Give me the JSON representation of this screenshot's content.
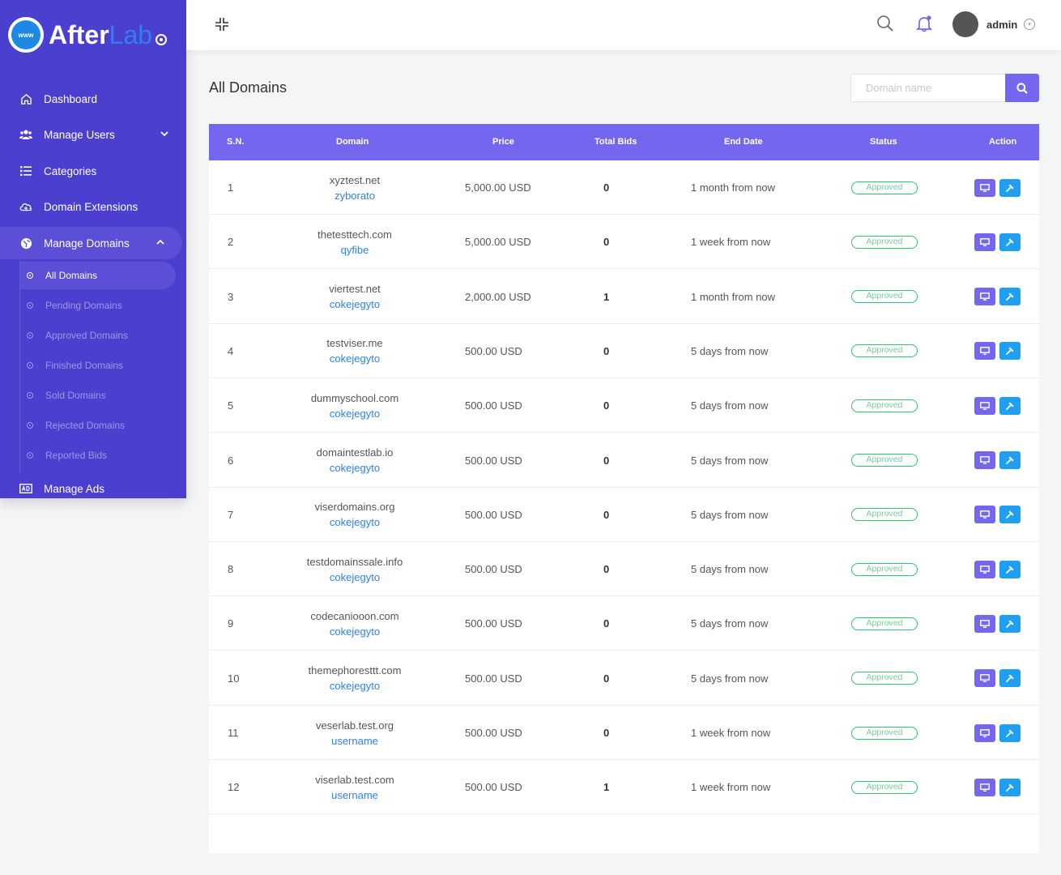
{
  "brand": {
    "name_main": "After",
    "name_accent": "Lab",
    "globe_text": "www"
  },
  "sidebar": {
    "items": [
      {
        "label": "Dashboard",
        "icon": "home-icon"
      },
      {
        "label": "Manage Users",
        "icon": "users-icon"
      },
      {
        "label": "Categories",
        "icon": "list-icon"
      },
      {
        "label": "Domain Extensions",
        "icon": "cloud-icon"
      },
      {
        "label": "Manage Domains",
        "icon": "globe-icon"
      },
      {
        "label": "Manage Ads",
        "icon": "ad-icon"
      }
    ],
    "subitems": [
      {
        "label": "All Domains"
      },
      {
        "label": "Pending Domains"
      },
      {
        "label": "Approved Domains"
      },
      {
        "label": "Finished Domains"
      },
      {
        "label": "Sold Domains"
      },
      {
        "label": "Rejected Domains"
      },
      {
        "label": "Reported Bids"
      }
    ]
  },
  "topbar": {
    "user_name": "admin"
  },
  "page": {
    "title": "All Domains",
    "search_placeholder": "Domain name"
  },
  "table": {
    "headers": {
      "sn": "S.N.",
      "domain": "Domain",
      "price": "Price",
      "bids": "Total Bids",
      "end": "End Date",
      "status": "Status",
      "action": "Action"
    },
    "rows": [
      {
        "sn": "1",
        "domain": "xyztest.net",
        "user": "zyborato",
        "price": "5,000.00 USD",
        "bids": "0",
        "end": "1 month from now",
        "status": "Approved"
      },
      {
        "sn": "2",
        "domain": "thetesttech.com",
        "user": "qyfibe",
        "price": "5,000.00 USD",
        "bids": "0",
        "end": "1 week from now",
        "status": "Approved"
      },
      {
        "sn": "3",
        "domain": "viertest.net",
        "user": "cokejegyto",
        "price": "2,000.00 USD",
        "bids": "1",
        "end": "1 month from now",
        "status": "Approved"
      },
      {
        "sn": "4",
        "domain": "testviser.me",
        "user": "cokejegyto",
        "price": "500.00 USD",
        "bids": "0",
        "end": "5 days from now",
        "status": "Approved"
      },
      {
        "sn": "5",
        "domain": "dummyschool.com",
        "user": "cokejegyto",
        "price": "500.00 USD",
        "bids": "0",
        "end": "5 days from now",
        "status": "Approved"
      },
      {
        "sn": "6",
        "domain": "domaintestlab.io",
        "user": "cokejegyto",
        "price": "500.00 USD",
        "bids": "0",
        "end": "5 days from now",
        "status": "Approved"
      },
      {
        "sn": "7",
        "domain": "viserdomains.org",
        "user": "cokejegyto",
        "price": "500.00 USD",
        "bids": "0",
        "end": "5 days from now",
        "status": "Approved"
      },
      {
        "sn": "8",
        "domain": "testdomainssale.info",
        "user": "cokejegyto",
        "price": "500.00 USD",
        "bids": "0",
        "end": "5 days from now",
        "status": "Approved"
      },
      {
        "sn": "9",
        "domain": "codecaniooon.com",
        "user": "cokejegyto",
        "price": "500.00 USD",
        "bids": "0",
        "end": "5 days from now",
        "status": "Approved"
      },
      {
        "sn": "10",
        "domain": "themephoresttt.com",
        "user": "cokejegyto",
        "price": "500.00 USD",
        "bids": "0",
        "end": "5 days from now",
        "status": "Approved"
      },
      {
        "sn": "11",
        "domain": "veserlab.test.org",
        "user": "username",
        "price": "500.00 USD",
        "bids": "0",
        "end": "1 week from now",
        "status": "Approved"
      },
      {
        "sn": "12",
        "domain": "viserlab.test.com",
        "user": "username",
        "price": "500.00 USD",
        "bids": "1",
        "end": "1 week from now",
        "status": "Approved"
      }
    ]
  },
  "colors": {
    "sidebar": "#4b3fd0",
    "accent": "#7367f0",
    "link": "#2f80ed",
    "approved": "#28c76f",
    "action_blue": "#1e9ff2"
  }
}
